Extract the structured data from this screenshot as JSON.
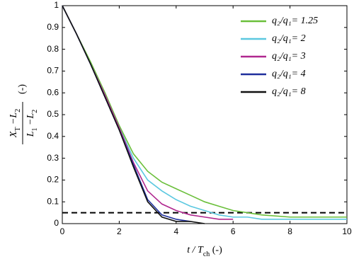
{
  "chart_data": {
    "type": "line",
    "x_label_parts": [
      "t / T",
      "ch",
      " (-)"
    ],
    "y_label_numerator_parts": [
      "X",
      "T",
      " −L",
      "2"
    ],
    "y_label_denominator_parts": [
      "L",
      "1",
      " −L",
      "2"
    ],
    "y_label_unit": "(-)",
    "x": [
      0,
      0.5,
      1,
      1.5,
      2,
      2.5,
      3,
      3.5,
      4,
      4.5,
      5,
      5.5,
      6,
      6.5,
      7,
      8,
      9,
      10
    ],
    "series": [
      {
        "name": "q₂/q₁= 1.25",
        "color": "#6abf3a",
        "values": [
          1,
          0.87,
          0.74,
          0.6,
          0.45,
          0.32,
          0.24,
          0.19,
          0.16,
          0.13,
          0.1,
          0.08,
          0.06,
          0.05,
          0.04,
          0.03,
          0.03,
          0.03
        ]
      },
      {
        "name": "q₂/q₁= 2",
        "color": "#5bc8e0",
        "values": [
          1,
          0.87,
          0.73,
          0.59,
          0.44,
          0.3,
          0.2,
          0.15,
          0.11,
          0.08,
          0.06,
          0.04,
          0.03,
          0.03,
          0.02,
          0.02,
          0.02,
          0.02
        ]
      },
      {
        "name": "q₂/q₁= 3",
        "color": "#b0278f",
        "values": [
          1,
          0.87,
          0.73,
          0.59,
          0.44,
          0.28,
          0.15,
          0.09,
          0.06,
          0.04,
          0.03,
          0.02,
          0.02,
          null,
          null,
          null,
          null,
          null
        ]
      },
      {
        "name": "q₂/q₁= 4",
        "color": "#1f2f9c",
        "values": [
          1,
          0.87,
          0.73,
          0.58,
          0.43,
          0.27,
          0.11,
          0.04,
          0.02,
          0.01,
          null,
          null,
          null,
          null,
          null,
          null,
          null,
          null
        ]
      },
      {
        "name": "q₂/q₁= 8",
        "color": "#111111",
        "values": [
          1,
          0.87,
          0.73,
          0.58,
          0.43,
          0.26,
          0.1,
          0.03,
          0.01,
          0.01,
          0,
          null,
          null,
          null,
          null,
          null,
          null,
          null
        ]
      }
    ],
    "reference_line": {
      "y": 0.05,
      "color": "#000000",
      "dashed": true
    },
    "xlim": [
      0,
      10
    ],
    "xticks": [
      0,
      2,
      4,
      6,
      8,
      10
    ],
    "ylim": [
      0,
      1
    ],
    "yticks": [
      0,
      0.1,
      0.2,
      0.3,
      0.4,
      0.5,
      0.6,
      0.7,
      0.8,
      0.9,
      1
    ],
    "legend": "upper right",
    "grid": false
  }
}
